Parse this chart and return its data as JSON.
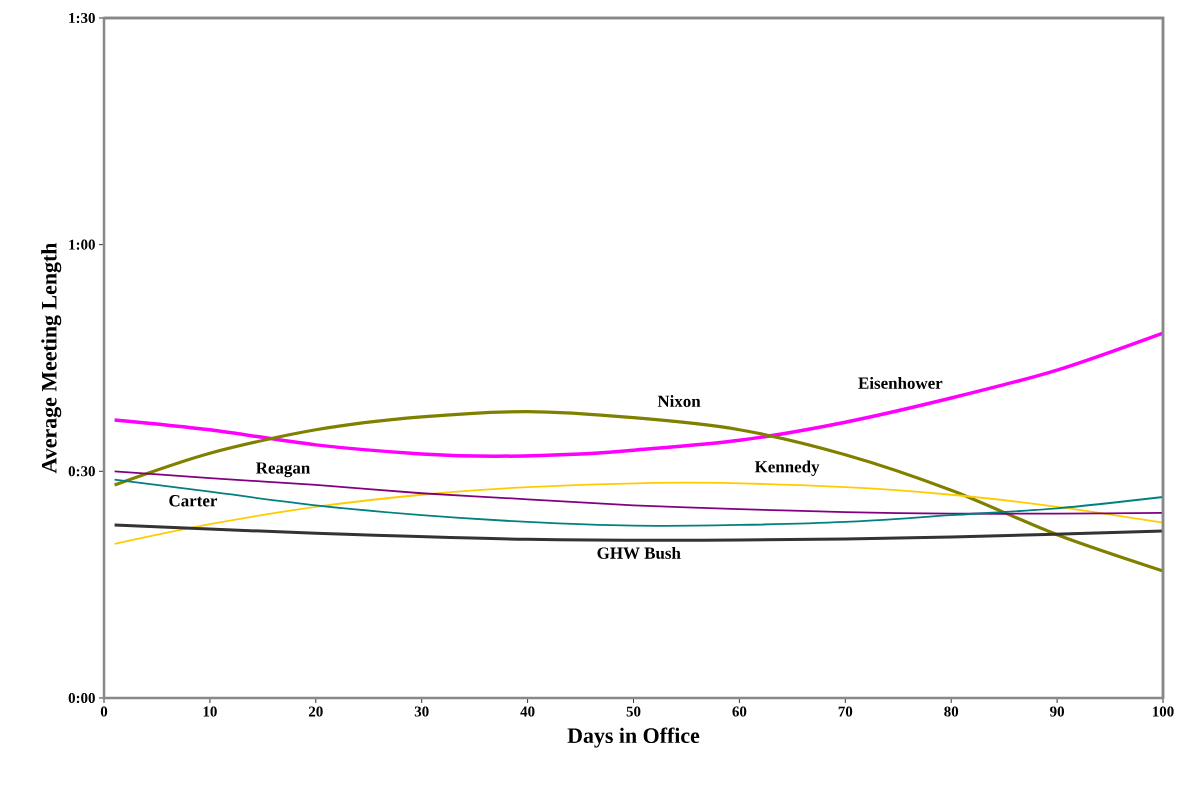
{
  "chart_data": {
    "type": "line",
    "xlabel": "Days in Office",
    "ylabel": "Average Meeting Length",
    "xlim": [
      0,
      100
    ],
    "xticks": [
      0,
      10,
      20,
      30,
      40,
      50,
      60,
      70,
      80,
      90,
      100
    ],
    "ylim": [
      0,
      90
    ],
    "yticks": [
      {
        "value": 0,
        "label": "0:00"
      },
      {
        "value": 30,
        "label": "0:30"
      },
      {
        "value": 60,
        "label": "1:00"
      },
      {
        "value": 90,
        "label": "1:30"
      }
    ],
    "marker": "none",
    "line_style": "solid",
    "series": [
      {
        "name": "Eisenhower",
        "color": "#ff00ff",
        "x": [
          1,
          10,
          20,
          30,
          37,
          45,
          50,
          60,
          70,
          80,
          90,
          100
        ],
        "values": [
          36.8,
          35.5,
          33.5,
          32.3,
          32.0,
          32.3,
          32.8,
          34.1,
          36.5,
          39.7,
          43.4,
          48.3
        ]
      },
      {
        "name": "Nixon",
        "color": "#808000",
        "x": [
          1,
          10,
          20,
          30,
          40,
          50,
          60,
          70,
          80,
          90,
          100
        ],
        "values": [
          28.2,
          32.4,
          35.5,
          37.2,
          37.9,
          37.1,
          35.5,
          32.2,
          27.5,
          21.6,
          16.8
        ]
      },
      {
        "name": "Kennedy",
        "color": "#ffcc00",
        "x": [
          1,
          10,
          20,
          30,
          40,
          55,
          70,
          80,
          90,
          100
        ],
        "values": [
          20.4,
          23.0,
          25.3,
          26.9,
          27.9,
          28.5,
          27.9,
          26.9,
          25.3,
          23.2
        ]
      },
      {
        "name": "Reagan",
        "color": "#800080",
        "x": [
          1,
          10,
          20,
          30,
          40,
          50,
          60,
          70,
          80,
          90,
          100
        ],
        "values": [
          30.0,
          29.1,
          28.2,
          27.1,
          26.3,
          25.5,
          25.0,
          24.6,
          24.4,
          24.4,
          24.5
        ]
      },
      {
        "name": "Carter",
        "color": "#008080",
        "x": [
          1,
          10,
          20,
          30,
          40,
          50,
          60,
          70,
          80,
          90,
          100
        ],
        "values": [
          28.9,
          27.3,
          25.5,
          24.2,
          23.3,
          22.8,
          22.9,
          23.3,
          24.2,
          25.1,
          26.6
        ]
      },
      {
        "name": "GHW Bush",
        "color": "#333333",
        "x": [
          1,
          20,
          40,
          60,
          80,
          100
        ],
        "values": [
          22.9,
          21.8,
          21.0,
          20.9,
          21.3,
          22.1
        ]
      }
    ]
  }
}
